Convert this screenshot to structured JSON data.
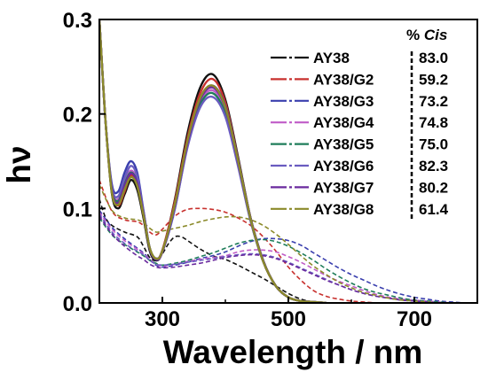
{
  "chart_data": {
    "type": "line",
    "xlabel": "Wavelength / nm",
    "ylabel": "hν",
    "xlim": [
      200,
      800
    ],
    "ylim": [
      0,
      0.3
    ],
    "x_ticks": [
      300,
      500,
      700
    ],
    "y_ticks": [
      0.0,
      0.1,
      0.2,
      0.3
    ],
    "x_tick_labels": [
      "300",
      "500",
      "700"
    ],
    "y_tick_labels": [
      "0.0",
      "0.1",
      "0.2",
      "0.3"
    ],
    "legend_position": "top-right",
    "cis_header_prefix": "% ",
    "cis_header_label": "Cis",
    "legend": [
      {
        "name": "AY38",
        "cis": "83.0",
        "color": "#111111"
      },
      {
        "name": "AY38/G2",
        "cis": "59.2",
        "color": "#c8312e"
      },
      {
        "name": "AY38/G3",
        "cis": "73.2",
        "color": "#3a3fae"
      },
      {
        "name": "AY38/G4",
        "cis": "74.8",
        "color": "#c05cc8"
      },
      {
        "name": "AY38/G5",
        "cis": "75.0",
        "color": "#1f7d5a"
      },
      {
        "name": "AY38/G6",
        "cis": "82.3",
        "color": "#6a5cc0"
      },
      {
        "name": "AY38/G7",
        "cis": "80.2",
        "color": "#6a2a9e"
      },
      {
        "name": "AY38/G8",
        "cis": "61.4",
        "color": "#8b8a2a"
      }
    ],
    "series": [
      {
        "name": "AY38",
        "style": "solid",
        "color": "#111111",
        "x": [
          200,
          210,
          220,
          230,
          240,
          250,
          260,
          270,
          280,
          290,
          300,
          320,
          340,
          360,
          380,
          400,
          420,
          440,
          460,
          480,
          500,
          520,
          540,
          560
        ],
        "y": [
          0.3,
          0.19,
          0.115,
          0.1,
          0.115,
          0.13,
          0.12,
          0.09,
          0.055,
          0.045,
          0.055,
          0.11,
          0.18,
          0.228,
          0.242,
          0.215,
          0.155,
          0.09,
          0.045,
          0.018,
          0.006,
          0.002,
          0.001,
          0.0
        ]
      },
      {
        "name": "AY38/G2",
        "style": "solid",
        "color": "#c8312e",
        "x": [
          200,
          210,
          220,
          230,
          240,
          250,
          260,
          270,
          280,
          290,
          300,
          320,
          340,
          360,
          380,
          400,
          420,
          440,
          460,
          480,
          500,
          520,
          540,
          560
        ],
        "y": [
          0.3,
          0.19,
          0.118,
          0.103,
          0.118,
          0.135,
          0.125,
          0.093,
          0.058,
          0.047,
          0.056,
          0.108,
          0.175,
          0.222,
          0.237,
          0.212,
          0.153,
          0.09,
          0.045,
          0.018,
          0.006,
          0.002,
          0.001,
          0.0
        ]
      },
      {
        "name": "AY38/G3",
        "style": "solid",
        "color": "#3a3fae",
        "x": [
          200,
          210,
          220,
          230,
          240,
          250,
          260,
          270,
          280,
          290,
          300,
          320,
          340,
          360,
          380,
          400,
          420,
          440,
          460,
          480,
          500,
          520,
          540,
          560
        ],
        "y": [
          0.3,
          0.19,
          0.125,
          0.118,
          0.138,
          0.15,
          0.138,
          0.098,
          0.058,
          0.046,
          0.054,
          0.1,
          0.168,
          0.215,
          0.23,
          0.208,
          0.152,
          0.09,
          0.045,
          0.018,
          0.006,
          0.002,
          0.001,
          0.0
        ]
      },
      {
        "name": "AY38/G4",
        "style": "solid",
        "color": "#c05cc8",
        "x": [
          200,
          210,
          220,
          230,
          240,
          250,
          260,
          270,
          280,
          290,
          300,
          320,
          340,
          360,
          380,
          400,
          420,
          440,
          460,
          480,
          500,
          520,
          540,
          560
        ],
        "y": [
          0.3,
          0.19,
          0.12,
          0.11,
          0.128,
          0.14,
          0.13,
          0.095,
          0.058,
          0.047,
          0.055,
          0.102,
          0.168,
          0.212,
          0.225,
          0.203,
          0.148,
          0.088,
          0.044,
          0.018,
          0.006,
          0.002,
          0.001,
          0.0
        ]
      },
      {
        "name": "AY38/G5",
        "style": "solid",
        "color": "#1f7d5a",
        "x": [
          200,
          210,
          220,
          230,
          240,
          250,
          260,
          270,
          280,
          290,
          300,
          320,
          340,
          360,
          380,
          400,
          420,
          440,
          460,
          480,
          500,
          520,
          540,
          560
        ],
        "y": [
          0.3,
          0.19,
          0.12,
          0.108,
          0.126,
          0.138,
          0.128,
          0.094,
          0.058,
          0.047,
          0.055,
          0.103,
          0.168,
          0.21,
          0.222,
          0.2,
          0.147,
          0.087,
          0.044,
          0.018,
          0.006,
          0.002,
          0.001,
          0.0
        ]
      },
      {
        "name": "AY38/G6",
        "style": "solid",
        "color": "#6a5cc0",
        "x": [
          200,
          210,
          220,
          230,
          240,
          250,
          260,
          270,
          280,
          290,
          300,
          320,
          340,
          360,
          380,
          400,
          420,
          440,
          460,
          480,
          500,
          520,
          540,
          560
        ],
        "y": [
          0.3,
          0.19,
          0.122,
          0.113,
          0.132,
          0.145,
          0.134,
          0.097,
          0.058,
          0.047,
          0.055,
          0.101,
          0.165,
          0.207,
          0.218,
          0.197,
          0.145,
          0.087,
          0.044,
          0.018,
          0.006,
          0.002,
          0.001,
          0.0
        ]
      },
      {
        "name": "AY38/G7",
        "style": "solid",
        "color": "#6a2a9e",
        "x": [
          200,
          210,
          220,
          230,
          240,
          250,
          260,
          270,
          280,
          290,
          300,
          320,
          340,
          360,
          380,
          400,
          420,
          440,
          460,
          480,
          500,
          520,
          540,
          560
        ],
        "y": [
          0.3,
          0.19,
          0.118,
          0.106,
          0.124,
          0.137,
          0.127,
          0.094,
          0.057,
          0.046,
          0.054,
          0.104,
          0.17,
          0.215,
          0.228,
          0.206,
          0.15,
          0.089,
          0.044,
          0.018,
          0.006,
          0.002,
          0.001,
          0.0
        ]
      },
      {
        "name": "AY38/G8",
        "style": "solid",
        "color": "#8b8a2a",
        "x": [
          200,
          210,
          220,
          230,
          240,
          250,
          260,
          270,
          280,
          290,
          300,
          320,
          340,
          360,
          380,
          400,
          420,
          440,
          460,
          480,
          500,
          520,
          540,
          560
        ],
        "y": [
          0.3,
          0.19,
          0.116,
          0.104,
          0.12,
          0.133,
          0.124,
          0.093,
          0.058,
          0.047,
          0.055,
          0.105,
          0.172,
          0.217,
          0.23,
          0.207,
          0.151,
          0.089,
          0.044,
          0.018,
          0.006,
          0.002,
          0.001,
          0.0
        ]
      },
      {
        "name": "AY38",
        "style": "dashed",
        "color": "#111111",
        "x": [
          200,
          210,
          220,
          240,
          260,
          270,
          280,
          290,
          300,
          310,
          320,
          330,
          340,
          360,
          380,
          400,
          420,
          440,
          460,
          480,
          500,
          520,
          540,
          560
        ],
        "y": [
          0.11,
          0.09,
          0.082,
          0.075,
          0.07,
          0.06,
          0.048,
          0.045,
          0.052,
          0.063,
          0.07,
          0.07,
          0.066,
          0.057,
          0.05,
          0.046,
          0.04,
          0.033,
          0.026,
          0.018,
          0.01,
          0.004,
          0.001,
          0.0
        ]
      },
      {
        "name": "AY38/G2",
        "style": "dashed",
        "color": "#c8312e",
        "x": [
          200,
          220,
          240,
          260,
          270,
          280,
          290,
          300,
          320,
          340,
          360,
          380,
          400,
          420,
          440,
          460,
          480,
          500,
          520,
          540,
          560,
          580,
          600,
          620,
          640,
          660
        ],
        "y": [
          0.13,
          0.097,
          0.088,
          0.086,
          0.082,
          0.075,
          0.072,
          0.078,
          0.092,
          0.099,
          0.1,
          0.099,
          0.096,
          0.09,
          0.082,
          0.07,
          0.055,
          0.038,
          0.024,
          0.013,
          0.007,
          0.004,
          0.002,
          0.001,
          0.0,
          0.0
        ]
      },
      {
        "name": "AY38/G3",
        "style": "dashed",
        "color": "#3a3fae",
        "x": [
          200,
          220,
          240,
          260,
          270,
          280,
          290,
          300,
          320,
          340,
          360,
          380,
          400,
          420,
          440,
          460,
          480,
          500,
          520,
          540,
          560,
          580,
          600,
          620,
          640,
          660,
          680,
          700,
          720,
          740,
          760,
          780,
          800
        ],
        "y": [
          0.098,
          0.08,
          0.068,
          0.058,
          0.053,
          0.046,
          0.04,
          0.038,
          0.04,
          0.043,
          0.047,
          0.05,
          0.054,
          0.06,
          0.065,
          0.068,
          0.068,
          0.066,
          0.061,
          0.053,
          0.045,
          0.037,
          0.03,
          0.024,
          0.018,
          0.013,
          0.009,
          0.006,
          0.004,
          0.002,
          0.001,
          0.0,
          0.0
        ]
      },
      {
        "name": "AY38/G4",
        "style": "dashed",
        "color": "#c05cc8",
        "x": [
          200,
          220,
          240,
          260,
          270,
          280,
          290,
          300,
          320,
          340,
          360,
          380,
          400,
          420,
          440,
          460,
          480,
          500,
          520,
          540,
          560,
          580,
          600,
          620,
          640,
          660,
          680,
          700,
          720,
          740,
          760,
          780,
          800
        ],
        "y": [
          0.096,
          0.078,
          0.066,
          0.057,
          0.052,
          0.046,
          0.041,
          0.039,
          0.041,
          0.044,
          0.046,
          0.048,
          0.05,
          0.054,
          0.056,
          0.056,
          0.054,
          0.049,
          0.043,
          0.036,
          0.029,
          0.023,
          0.018,
          0.013,
          0.009,
          0.006,
          0.004,
          0.003,
          0.002,
          0.001,
          0.0,
          0.0,
          0.0
        ]
      },
      {
        "name": "AY38/G5",
        "style": "dashed",
        "color": "#1f7d5a",
        "x": [
          200,
          220,
          240,
          260,
          270,
          280,
          290,
          300,
          320,
          340,
          360,
          380,
          400,
          420,
          440,
          460,
          480,
          500,
          520,
          540,
          560,
          580,
          600,
          620,
          640,
          660,
          680,
          700,
          720,
          740,
          760,
          780,
          800
        ],
        "y": [
          0.09,
          0.072,
          0.062,
          0.054,
          0.05,
          0.045,
          0.042,
          0.04,
          0.042,
          0.045,
          0.049,
          0.053,
          0.058,
          0.063,
          0.066,
          0.067,
          0.065,
          0.06,
          0.053,
          0.045,
          0.036,
          0.028,
          0.021,
          0.015,
          0.011,
          0.008,
          0.005,
          0.003,
          0.002,
          0.001,
          0.0,
          0.0,
          0.0
        ]
      },
      {
        "name": "AY38/G6",
        "style": "dashed",
        "color": "#6a5cc0",
        "x": [
          200,
          220,
          240,
          260,
          270,
          280,
          290,
          300,
          320,
          340,
          360,
          380,
          400,
          420,
          440,
          460,
          480,
          500,
          520,
          540,
          560,
          580,
          600,
          620,
          640,
          660,
          680,
          700,
          720,
          740,
          760,
          780,
          800
        ],
        "y": [
          0.094,
          0.075,
          0.063,
          0.055,
          0.051,
          0.045,
          0.041,
          0.04,
          0.041,
          0.043,
          0.045,
          0.047,
          0.049,
          0.051,
          0.052,
          0.051,
          0.048,
          0.043,
          0.037,
          0.031,
          0.025,
          0.019,
          0.014,
          0.01,
          0.007,
          0.005,
          0.003,
          0.002,
          0.001,
          0.0,
          0.0,
          0.0,
          0.0
        ]
      },
      {
        "name": "AY38/G7",
        "style": "dashed",
        "color": "#6a2a9e",
        "x": [
          200,
          220,
          240,
          260,
          270,
          280,
          290,
          300,
          320,
          340,
          360,
          380,
          400,
          420,
          440,
          460,
          480,
          500,
          520,
          540,
          560,
          580,
          600,
          620,
          640,
          660,
          680,
          700,
          720,
          740,
          760,
          780,
          800
        ],
        "y": [
          0.092,
          0.073,
          0.06,
          0.05,
          0.046,
          0.041,
          0.038,
          0.037,
          0.038,
          0.04,
          0.042,
          0.045,
          0.048,
          0.05,
          0.051,
          0.05,
          0.047,
          0.042,
          0.036,
          0.03,
          0.024,
          0.019,
          0.014,
          0.01,
          0.007,
          0.005,
          0.003,
          0.002,
          0.001,
          0.0,
          0.0,
          0.0,
          0.0
        ]
      },
      {
        "name": "AY38/G8",
        "style": "dashed",
        "color": "#8b8a2a",
        "x": [
          200,
          220,
          240,
          260,
          270,
          280,
          290,
          300,
          320,
          340,
          360,
          380,
          400,
          420,
          440,
          460,
          480,
          500,
          520,
          540,
          560,
          580,
          600,
          620,
          640,
          660,
          680,
          700,
          720,
          740,
          760,
          780,
          800
        ],
        "y": [
          0.125,
          0.098,
          0.09,
          0.088,
          0.085,
          0.079,
          0.075,
          0.076,
          0.079,
          0.082,
          0.086,
          0.089,
          0.091,
          0.091,
          0.088,
          0.082,
          0.073,
          0.062,
          0.05,
          0.039,
          0.03,
          0.022,
          0.016,
          0.011,
          0.008,
          0.005,
          0.003,
          0.002,
          0.001,
          0.0,
          0.0,
          0.0,
          0.0
        ]
      }
    ]
  }
}
